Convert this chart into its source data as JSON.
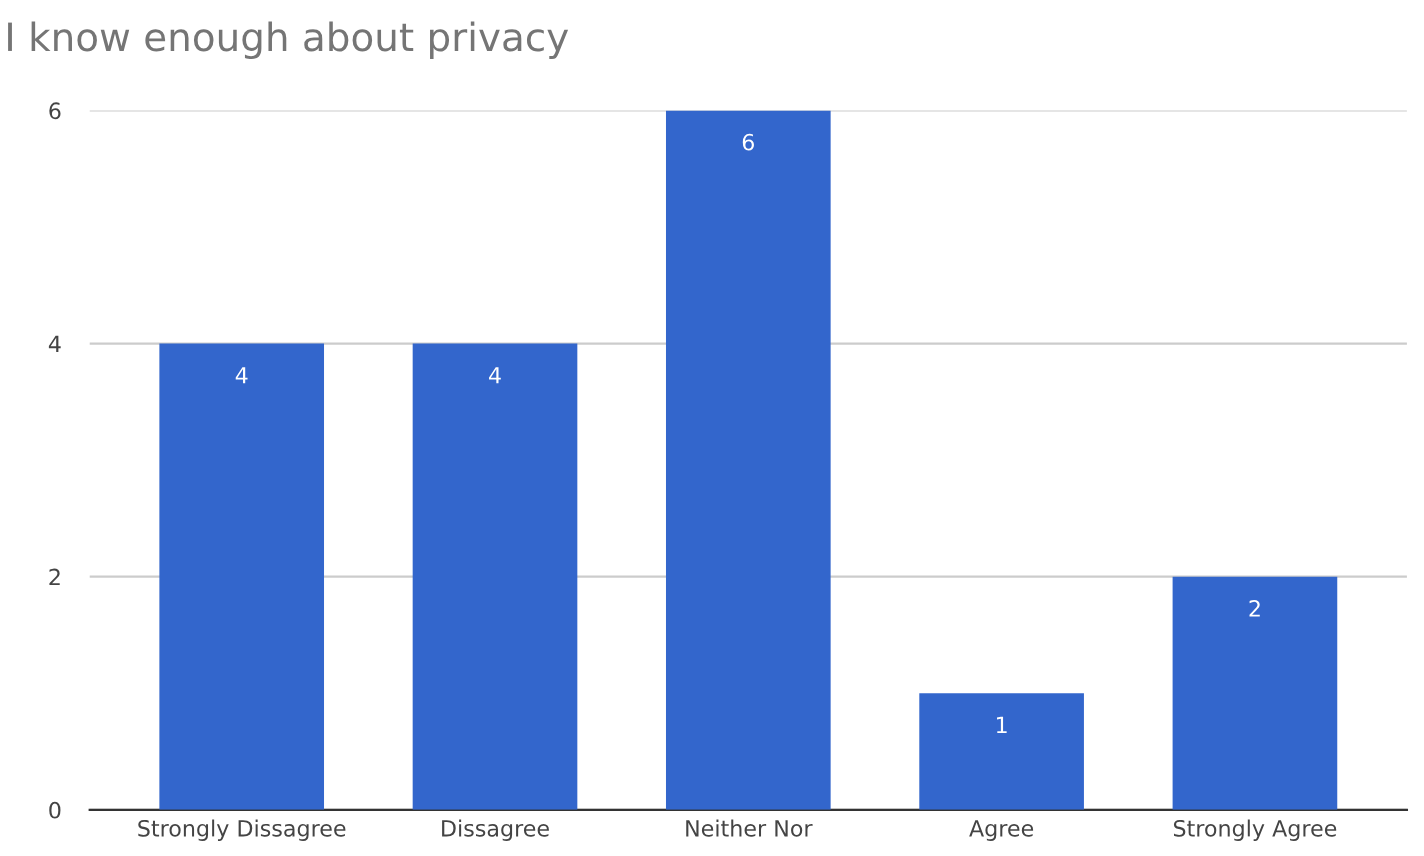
{
  "chart_data": {
    "type": "bar",
    "title": "I know enough about privacy",
    "categories": [
      "Strongly Dissagree",
      "Dissagree",
      "Neither Nor",
      "Agree",
      "Strongly Agree"
    ],
    "values": [
      4,
      4,
      6,
      1,
      2
    ],
    "color": "#3366cc",
    "ylim": [
      0,
      6
    ],
    "yticks": [
      0,
      2,
      4,
      6
    ],
    "grid": "y",
    "data_labels": true
  }
}
